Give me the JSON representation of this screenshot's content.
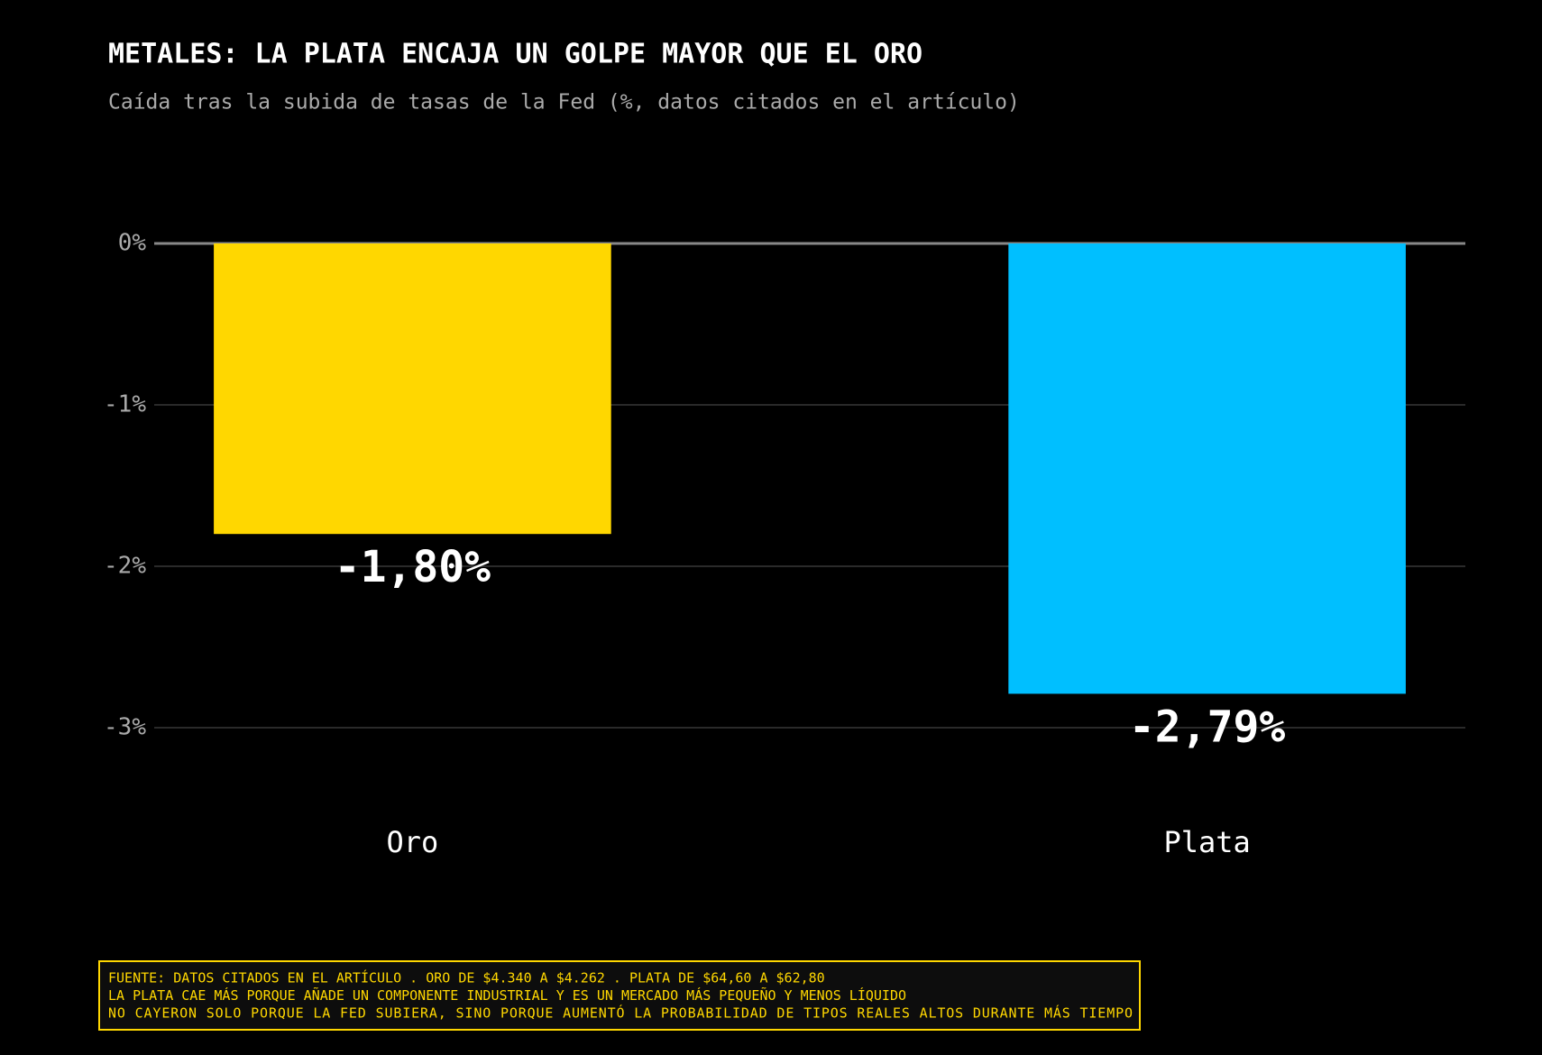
{
  "chart_data": {
    "type": "bar",
    "title": "METALES: LA PLATA ENCAJA UN GOLPE MAYOR QUE EL ORO",
    "subtitle": "Caída tras la subida de tasas de la Fed (%, datos citados en el artículo)",
    "categories": [
      "Oro",
      "Plata"
    ],
    "values": [
      -1.8,
      -2.79
    ],
    "value_labels": [
      "-1,80%",
      "-2,79%"
    ],
    "colors": [
      "#ffd700",
      "#00bfff"
    ],
    "ylim": [
      -3.5,
      0.5
    ],
    "yticks": [
      {
        "value": 0,
        "label": "0%"
      },
      {
        "value": -1,
        "label": "-1%"
      },
      {
        "value": -2,
        "label": "-2%"
      },
      {
        "value": -3,
        "label": "-3%"
      }
    ],
    "grid": true,
    "notes": [
      "FUENTE: DATOS CITADOS EN EL ARTÍCULO . ORO DE $4.340 A $4.262 . PLATA DE $64,60 A $62,80",
      "LA PLATA CAE MÁS PORQUE AÑADE UN COMPONENTE INDUSTRIAL Y ES UN MERCADO MÁS PEQUEÑO Y MENOS LÍQUIDO",
      "NO CAYERON SOLO PORQUE LA FED SUBIERA, SINO PORQUE AUMENTÓ LA PROBABILIDAD DE TIPOS REALES ALTOS DURANTE MÁS TIEMPO"
    ]
  }
}
